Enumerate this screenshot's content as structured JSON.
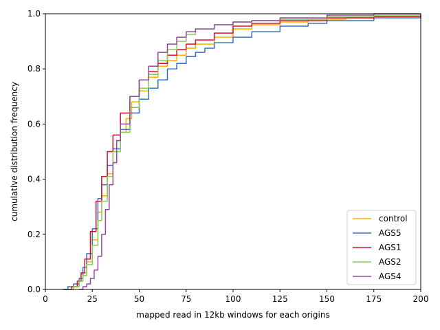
{
  "chart_data": {
    "type": "line",
    "title": "",
    "xlabel": "mapped read in 12kb windows for each origins",
    "ylabel": "cumulative distribution frequency",
    "xlim": [
      0,
      200
    ],
    "ylim": [
      0,
      1.0
    ],
    "xticks": [
      "0",
      "25",
      "50",
      "75",
      "100",
      "125",
      "150",
      "175",
      "200"
    ],
    "yticks": [
      "0.0",
      "0.2",
      "0.4",
      "0.6",
      "0.8",
      "1.0"
    ],
    "grid": false,
    "legend_position": "lower-right",
    "series": [
      {
        "name": "control",
        "color": "#f5b000",
        "points": [
          [
            12,
            0
          ],
          [
            15,
            0.01
          ],
          [
            18,
            0.03
          ],
          [
            20,
            0.06
          ],
          [
            22,
            0.1
          ],
          [
            25,
            0.18
          ],
          [
            28,
            0.28
          ],
          [
            30,
            0.34
          ],
          [
            33,
            0.42
          ],
          [
            36,
            0.5
          ],
          [
            40,
            0.57
          ],
          [
            43,
            0.62
          ],
          [
            46,
            0.68
          ],
          [
            50,
            0.72
          ],
          [
            55,
            0.77
          ],
          [
            60,
            0.81
          ],
          [
            65,
            0.83
          ],
          [
            70,
            0.85
          ],
          [
            75,
            0.875
          ],
          [
            80,
            0.89
          ],
          [
            90,
            0.915
          ],
          [
            100,
            0.945
          ],
          [
            110,
            0.96
          ],
          [
            125,
            0.97
          ],
          [
            140,
            0.98
          ],
          [
            160,
            0.985
          ],
          [
            175,
            0.99
          ],
          [
            200,
            0.995
          ]
        ]
      },
      {
        "name": "AGS5",
        "color": "#3a70c0",
        "points": [
          [
            9,
            0
          ],
          [
            12,
            0.01
          ],
          [
            15,
            0.02
          ],
          [
            18,
            0.04
          ],
          [
            20,
            0.08
          ],
          [
            22,
            0.13
          ],
          [
            25,
            0.22
          ],
          [
            28,
            0.33
          ],
          [
            30,
            0.38
          ],
          [
            33,
            0.45
          ],
          [
            36,
            0.51
          ],
          [
            40,
            0.58
          ],
          [
            45,
            0.64
          ],
          [
            50,
            0.69
          ],
          [
            55,
            0.73
          ],
          [
            60,
            0.76
          ],
          [
            65,
            0.8
          ],
          [
            70,
            0.82
          ],
          [
            75,
            0.845
          ],
          [
            80,
            0.86
          ],
          [
            85,
            0.875
          ],
          [
            90,
            0.895
          ],
          [
            100,
            0.915
          ],
          [
            110,
            0.935
          ],
          [
            125,
            0.955
          ],
          [
            140,
            0.965
          ],
          [
            150,
            0.975
          ],
          [
            175,
            0.985
          ],
          [
            200,
            0.99
          ]
        ]
      },
      {
        "name": "AGS1",
        "color": "#d0102e",
        "points": [
          [
            10,
            0
          ],
          [
            14,
            0.01
          ],
          [
            17,
            0.03
          ],
          [
            19,
            0.06
          ],
          [
            21,
            0.11
          ],
          [
            24,
            0.21
          ],
          [
            27,
            0.32
          ],
          [
            30,
            0.41
          ],
          [
            33,
            0.5
          ],
          [
            36,
            0.56
          ],
          [
            40,
            0.64
          ],
          [
            45,
            0.7
          ],
          [
            50,
            0.76
          ],
          [
            55,
            0.79
          ],
          [
            60,
            0.82
          ],
          [
            65,
            0.85
          ],
          [
            70,
            0.87
          ],
          [
            75,
            0.89
          ],
          [
            80,
            0.905
          ],
          [
            90,
            0.93
          ],
          [
            100,
            0.955
          ],
          [
            110,
            0.965
          ],
          [
            125,
            0.975
          ],
          [
            150,
            0.985
          ],
          [
            175,
            0.99
          ],
          [
            200,
            0.995
          ]
        ]
      },
      {
        "name": "AGS2",
        "color": "#88cc55",
        "points": [
          [
            11,
            0
          ],
          [
            15,
            0.01
          ],
          [
            18,
            0.03
          ],
          [
            20,
            0.05
          ],
          [
            22,
            0.09
          ],
          [
            25,
            0.16
          ],
          [
            28,
            0.25
          ],
          [
            30,
            0.32
          ],
          [
            33,
            0.41
          ],
          [
            36,
            0.5
          ],
          [
            40,
            0.57
          ],
          [
            45,
            0.66
          ],
          [
            50,
            0.73
          ],
          [
            55,
            0.78
          ],
          [
            60,
            0.83
          ],
          [
            65,
            0.87
          ],
          [
            70,
            0.9
          ],
          [
            75,
            0.925
          ],
          [
            80,
            0.945
          ],
          [
            90,
            0.96
          ],
          [
            100,
            0.97
          ],
          [
            110,
            0.975
          ],
          [
            125,
            0.98
          ],
          [
            150,
            0.99
          ],
          [
            175,
            0.995
          ],
          [
            200,
            1.0
          ]
        ]
      },
      {
        "name": "AGS4",
        "color": "#8e4a9a",
        "points": [
          [
            18,
            0
          ],
          [
            20,
            0.01
          ],
          [
            22,
            0.02
          ],
          [
            24,
            0.04
          ],
          [
            26,
            0.07
          ],
          [
            28,
            0.12
          ],
          [
            30,
            0.2
          ],
          [
            32,
            0.29
          ],
          [
            34,
            0.38
          ],
          [
            36,
            0.46
          ],
          [
            38,
            0.54
          ],
          [
            40,
            0.6
          ],
          [
            45,
            0.7
          ],
          [
            50,
            0.76
          ],
          [
            55,
            0.81
          ],
          [
            60,
            0.86
          ],
          [
            65,
            0.89
          ],
          [
            70,
            0.915
          ],
          [
            75,
            0.935
          ],
          [
            80,
            0.945
          ],
          [
            90,
            0.96
          ],
          [
            100,
            0.97
          ],
          [
            110,
            0.975
          ],
          [
            125,
            0.985
          ],
          [
            150,
            0.995
          ],
          [
            175,
            1.0
          ],
          [
            200,
            1.0
          ]
        ]
      }
    ]
  }
}
